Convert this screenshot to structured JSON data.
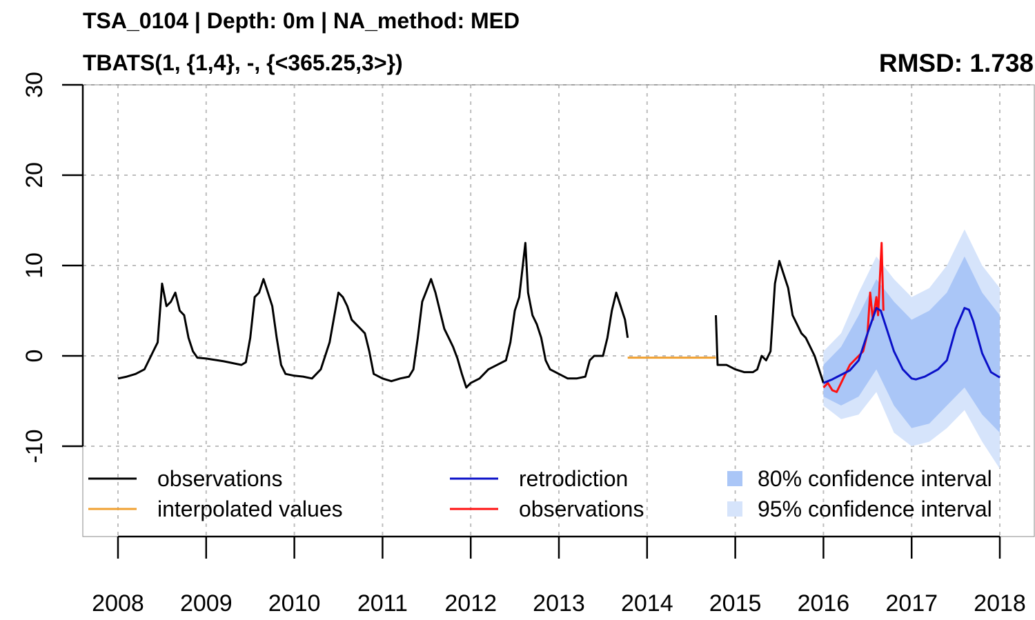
{
  "header": {
    "title_line1": "TSA_0104 | Depth: 0m | NA_method: MED",
    "title_line2": "TBATS(1, {1,4}, -, {<365.25,3>})",
    "rmsd": "RMSD: 1.738"
  },
  "colors": {
    "observations": "#000000",
    "interpolated": "#f0a030",
    "retrodiction": "#0a10c8",
    "observations_test": "#ff1010",
    "ci80": "#aac6f7",
    "ci95": "#d6e4fb",
    "grid": "#bdbdbd"
  },
  "chart_data": {
    "type": "line",
    "xlim": [
      2008,
      2018
    ],
    "ylim": [
      -20,
      30
    ],
    "x_ticks": [
      "2008",
      "2009",
      "2010",
      "2011",
      "2012",
      "2013",
      "2014",
      "2015",
      "2016",
      "2017",
      "2018"
    ],
    "y_ticks": [
      "-10",
      "0",
      "10",
      "20",
      "30"
    ],
    "grid": true,
    "legend": {
      "placement": "bottom",
      "entries": [
        {
          "label": "observations",
          "type": "line",
          "color": "#000000"
        },
        {
          "label": "interpolated values",
          "type": "line",
          "color": "#f0a030"
        },
        {
          "label": "retrodiction",
          "type": "line",
          "color": "#0a10c8"
        },
        {
          "label": "observations",
          "type": "line",
          "color": "#ff1010"
        },
        {
          "label": "80% confidence interval",
          "type": "box",
          "color": "#aac6f7"
        },
        {
          "label": "95% confidence interval",
          "type": "box",
          "color": "#d6e4fb"
        }
      ]
    },
    "series": [
      {
        "role": "observations",
        "color": "#000000",
        "segments": [
          [
            [
              2008.0,
              -2.5
            ],
            [
              2008.1,
              -2.3
            ],
            [
              2008.2,
              -2.0
            ],
            [
              2008.3,
              -1.5
            ],
            [
              2008.4,
              0.5
            ],
            [
              2008.45,
              1.5
            ],
            [
              2008.5,
              8.0
            ],
            [
              2008.55,
              5.5
            ],
            [
              2008.6,
              6.0
            ],
            [
              2008.65,
              7.0
            ],
            [
              2008.7,
              5.0
            ],
            [
              2008.75,
              4.5
            ],
            [
              2008.8,
              2.0
            ],
            [
              2008.85,
              0.5
            ],
            [
              2008.9,
              -0.2
            ],
            [
              2009.0,
              -0.3
            ],
            [
              2009.2,
              -0.6
            ],
            [
              2009.4,
              -1.0
            ],
            [
              2009.45,
              -0.7
            ],
            [
              2009.5,
              2.0
            ],
            [
              2009.55,
              6.5
            ],
            [
              2009.6,
              7.0
            ],
            [
              2009.65,
              8.5
            ],
            [
              2009.7,
              7.0
            ],
            [
              2009.75,
              5.5
            ],
            [
              2009.8,
              2.0
            ],
            [
              2009.85,
              -1.0
            ],
            [
              2009.9,
              -2.0
            ],
            [
              2010.0,
              -2.2
            ],
            [
              2010.1,
              -2.3
            ],
            [
              2010.2,
              -2.5
            ],
            [
              2010.3,
              -1.5
            ],
            [
              2010.4,
              1.5
            ],
            [
              2010.5,
              7.0
            ],
            [
              2010.55,
              6.5
            ],
            [
              2010.6,
              5.5
            ],
            [
              2010.65,
              4.0
            ],
            [
              2010.7,
              3.5
            ],
            [
              2010.75,
              3.0
            ],
            [
              2010.8,
              2.5
            ],
            [
              2010.85,
              0.5
            ],
            [
              2010.9,
              -2.0
            ],
            [
              2011.0,
              -2.5
            ],
            [
              2011.1,
              -2.8
            ],
            [
              2011.2,
              -2.5
            ],
            [
              2011.3,
              -2.3
            ],
            [
              2011.35,
              -1.5
            ],
            [
              2011.4,
              2.0
            ],
            [
              2011.45,
              6.0
            ],
            [
              2011.55,
              8.5
            ],
            [
              2011.6,
              7.0
            ],
            [
              2011.65,
              5.0
            ],
            [
              2011.7,
              3.0
            ],
            [
              2011.75,
              2.0
            ],
            [
              2011.8,
              1.0
            ],
            [
              2011.85,
              -0.3
            ],
            [
              2011.9,
              -2.0
            ],
            [
              2011.95,
              -3.5
            ],
            [
              2012.0,
              -3.0
            ],
            [
              2012.1,
              -2.5
            ],
            [
              2012.2,
              -1.5
            ],
            [
              2012.3,
              -1.0
            ],
            [
              2012.4,
              -0.5
            ],
            [
              2012.45,
              1.5
            ],
            [
              2012.5,
              5.0
            ],
            [
              2012.55,
              6.5
            ],
            [
              2012.62,
              12.5
            ],
            [
              2012.65,
              7.0
            ],
            [
              2012.7,
              4.5
            ],
            [
              2012.75,
              3.5
            ],
            [
              2012.8,
              2.0
            ],
            [
              2012.85,
              -0.5
            ],
            [
              2012.9,
              -1.5
            ],
            [
              2013.0,
              -2.0
            ],
            [
              2013.1,
              -2.5
            ],
            [
              2013.2,
              -2.5
            ],
            [
              2013.3,
              -2.3
            ],
            [
              2013.35,
              -0.5
            ],
            [
              2013.4,
              0.0
            ],
            [
              2013.5,
              0.0
            ],
            [
              2013.55,
              2.0
            ],
            [
              2013.6,
              5.0
            ],
            [
              2013.65,
              7.0
            ],
            [
              2013.7,
              5.5
            ],
            [
              2013.75,
              4.0
            ],
            [
              2013.78,
              2.0
            ]
          ],
          [
            [
              2014.78,
              4.5
            ],
            [
              2014.8,
              -1.0
            ],
            [
              2014.9,
              -1.0
            ],
            [
              2015.0,
              -1.5
            ],
            [
              2015.1,
              -1.8
            ],
            [
              2015.2,
              -1.8
            ],
            [
              2015.25,
              -1.5
            ],
            [
              2015.3,
              0.0
            ],
            [
              2015.35,
              -0.5
            ],
            [
              2015.4,
              0.5
            ],
            [
              2015.45,
              8.0
            ],
            [
              2015.5,
              10.5
            ],
            [
              2015.55,
              9.0
            ],
            [
              2015.6,
              7.5
            ],
            [
              2015.65,
              4.5
            ],
            [
              2015.7,
              3.5
            ],
            [
              2015.75,
              2.5
            ],
            [
              2015.8,
              2.0
            ],
            [
              2015.85,
              1.0
            ],
            [
              2015.9,
              0.0
            ],
            [
              2015.95,
              -1.5
            ],
            [
              2016.0,
              -3.0
            ]
          ]
        ]
      },
      {
        "role": "interpolated values",
        "color": "#f0a030",
        "segments": [
          [
            [
              2013.78,
              -0.2
            ],
            [
              2014.78,
              -0.2
            ]
          ]
        ]
      },
      {
        "role": "observations (test)",
        "color": "#ff1010",
        "segments": [
          [
            [
              2016.0,
              -3.5
            ],
            [
              2016.05,
              -3.0
            ],
            [
              2016.1,
              -3.8
            ],
            [
              2016.15,
              -4.0
            ],
            [
              2016.2,
              -3.0
            ],
            [
              2016.25,
              -2.0
            ],
            [
              2016.3,
              -1.0
            ],
            [
              2016.35,
              -0.5
            ],
            [
              2016.4,
              0.0
            ],
            [
              2016.45,
              0.5
            ],
            [
              2016.5,
              2.5
            ],
            [
              2016.53,
              7.0
            ],
            [
              2016.56,
              4.0
            ],
            [
              2016.6,
              6.5
            ],
            [
              2016.62,
              4.5
            ],
            [
              2016.66,
              12.5
            ],
            [
              2016.68,
              5.0
            ]
          ]
        ]
      },
      {
        "role": "retrodiction",
        "color": "#0a10c8",
        "segments": [
          [
            [
              2016.0,
              -3.0
            ],
            [
              2016.1,
              -2.6
            ],
            [
              2016.2,
              -2.1
            ],
            [
              2016.3,
              -1.6
            ],
            [
              2016.4,
              -0.5
            ],
            [
              2016.5,
              2.5
            ],
            [
              2016.6,
              5.3
            ],
            [
              2016.65,
              5.0
            ],
            [
              2016.7,
              3.5
            ],
            [
              2016.8,
              0.5
            ],
            [
              2016.9,
              -1.5
            ],
            [
              2017.0,
              -2.5
            ],
            [
              2017.05,
              -2.6
            ],
            [
              2017.15,
              -2.3
            ],
            [
              2017.3,
              -1.5
            ],
            [
              2017.4,
              -0.5
            ],
            [
              2017.5,
              3.0
            ],
            [
              2017.6,
              5.3
            ],
            [
              2017.65,
              5.1
            ],
            [
              2017.7,
              3.8
            ],
            [
              2017.8,
              0.3
            ],
            [
              2017.9,
              -1.8
            ],
            [
              2018.0,
              -2.4
            ]
          ]
        ]
      }
    ],
    "ci80": {
      "x": [
        2016.0,
        2016.2,
        2016.4,
        2016.6,
        2016.8,
        2017.0,
        2017.2,
        2017.4,
        2017.6,
        2017.8,
        2018.0
      ],
      "lower": [
        -4.5,
        -5.5,
        -4.5,
        -1.5,
        -5.5,
        -8.0,
        -7.5,
        -5.5,
        -3.5,
        -6.5,
        -8.5
      ],
      "upper": [
        -1.0,
        1.0,
        4.5,
        8.5,
        6.0,
        4.0,
        5.0,
        7.0,
        11.0,
        7.0,
        4.5
      ]
    },
    "ci95": {
      "x": [
        2016.0,
        2016.2,
        2016.4,
        2016.6,
        2016.8,
        2017.0,
        2017.2,
        2017.4,
        2017.6,
        2017.8,
        2018.0
      ],
      "lower": [
        -5.5,
        -7.0,
        -6.5,
        -4.0,
        -8.5,
        -10.0,
        -9.5,
        -8.0,
        -6.0,
        -9.5,
        -12.5
      ],
      "upper": [
        0.5,
        2.5,
        7.0,
        11.0,
        8.5,
        6.5,
        7.5,
        10.0,
        14.0,
        10.0,
        7.5
      ]
    }
  }
}
